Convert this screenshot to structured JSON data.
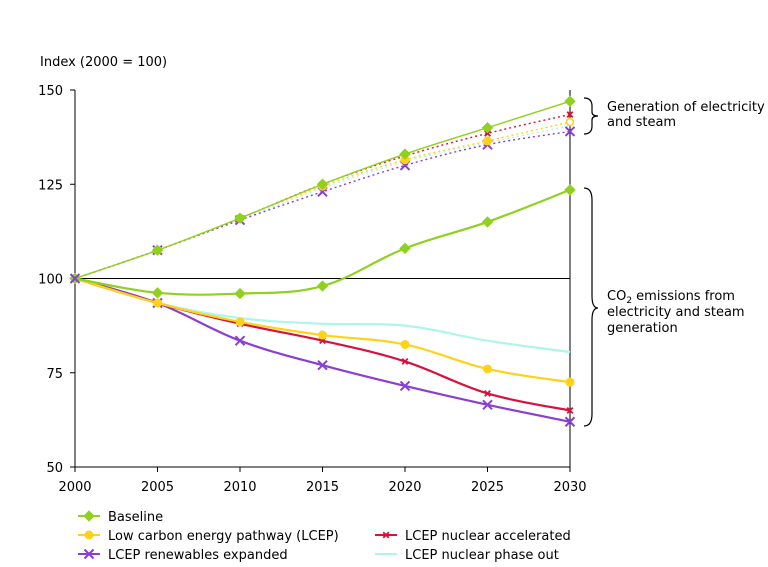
{
  "chart_data": {
    "type": "line",
    "ylabel": "Index (2000 = 100)",
    "x": [
      2000,
      2005,
      2010,
      2015,
      2020,
      2025,
      2030
    ],
    "xticks": [
      "2000",
      "2005",
      "2010",
      "2015",
      "2020",
      "2025",
      "2030"
    ],
    "ylim": [
      50,
      150
    ],
    "yticks": [
      "50",
      "75",
      "100",
      "125",
      "150"
    ],
    "grid": false,
    "legend_position": "bottom",
    "groups": {
      "generation": {
        "label": "Generation of electricity and steam",
        "label_lines": [
          "Generation of electricity",
          "and steam"
        ]
      },
      "emissions": {
        "label": "CO2 emissions from electricity and steam generation",
        "label_first_main": "CO",
        "label_first_sub": "2",
        "label_first_rest": " emissions from",
        "label_lines": [
          "electricity and steam",
          "generation"
        ]
      }
    },
    "series": [
      {
        "name": "Baseline",
        "color": "#8fd11e",
        "marker": "diamond",
        "generation": [
          100,
          107.5,
          116,
          125,
          133,
          140,
          147
        ],
        "emissions": [
          100,
          96.2,
          96,
          98,
          108,
          115,
          123.5
        ]
      },
      {
        "name": "Low carbon energy pathway (LCEP)",
        "color": "#ffd21a",
        "marker": "circle",
        "generation": [
          100,
          107.5,
          116,
          124.5,
          131.5,
          136.5,
          141.5
        ],
        "emissions": [
          100,
          93.5,
          88.5,
          85,
          82.5,
          76,
          72.5
        ]
      },
      {
        "name": "LCEP nuclear accelerated",
        "color": "#d7123c",
        "marker": "x-small",
        "generation": [
          100,
          107.5,
          116,
          125,
          132.5,
          138.5,
          143.5
        ],
        "emissions": [
          100,
          93.5,
          88,
          83.5,
          78,
          69.5,
          65
        ]
      },
      {
        "name": "LCEP renewables expanded",
        "color": "#8a3fd1",
        "marker": "x",
        "generation": [
          100,
          107.5,
          115.5,
          123,
          130,
          135.5,
          139
        ],
        "emissions": [
          100,
          93.5,
          83.5,
          77,
          71.5,
          66.5,
          62
        ]
      },
      {
        "name": "LCEP nuclear phase out",
        "color": "#aef5ec",
        "marker": "none",
        "generation": [
          100,
          107.5,
          115.5,
          124,
          131,
          136,
          140.5
        ],
        "emissions": [
          100,
          93.5,
          89.5,
          88,
          87.5,
          83.5,
          80.5
        ]
      }
    ]
  }
}
